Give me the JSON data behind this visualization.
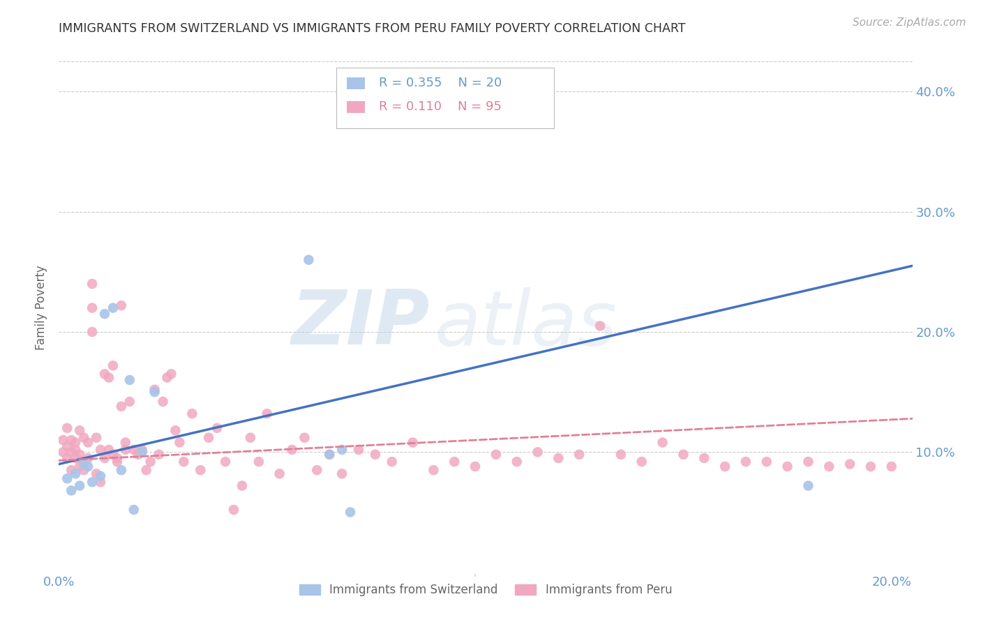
{
  "title": "IMMIGRANTS FROM SWITZERLAND VS IMMIGRANTS FROM PERU FAMILY POVERTY CORRELATION CHART",
  "source": "Source: ZipAtlas.com",
  "ylabel": "Family Poverty",
  "xlim": [
    0.0,
    0.205
  ],
  "ylim": [
    0.0,
    0.44
  ],
  "watermark_zip": "ZIP",
  "watermark_atlas": "atlas",
  "switzerland_color": "#a8c4e8",
  "peru_color": "#f0a8c0",
  "switzerland_line_color": "#4472c4",
  "peru_line_color": "#e08098",
  "legend_r_swiss": "R = 0.355",
  "legend_n_swiss": "N = 20",
  "legend_r_peru": "R = 0.110",
  "legend_n_peru": "N = 95",
  "legend_label_swiss": "Immigrants from Switzerland",
  "legend_label_peru": "Immigrants from Peru",
  "title_color": "#333333",
  "axis_color": "#6699cc",
  "grid_color": "#cccccc",
  "background_color": "#ffffff",
  "swiss_x": [
    0.002,
    0.003,
    0.004,
    0.005,
    0.006,
    0.007,
    0.008,
    0.01,
    0.011,
    0.013,
    0.015,
    0.017,
    0.018,
    0.02,
    0.023,
    0.06,
    0.065,
    0.068,
    0.07,
    0.18
  ],
  "swiss_y": [
    0.078,
    0.068,
    0.082,
    0.072,
    0.09,
    0.088,
    0.075,
    0.08,
    0.215,
    0.22,
    0.085,
    0.16,
    0.052,
    0.1,
    0.15,
    0.26,
    0.098,
    0.102,
    0.05,
    0.072
  ],
  "peru_x": [
    0.001,
    0.001,
    0.002,
    0.002,
    0.002,
    0.003,
    0.003,
    0.003,
    0.004,
    0.004,
    0.004,
    0.005,
    0.005,
    0.005,
    0.006,
    0.006,
    0.006,
    0.007,
    0.007,
    0.008,
    0.008,
    0.008,
    0.009,
    0.009,
    0.01,
    0.01,
    0.011,
    0.011,
    0.012,
    0.012,
    0.013,
    0.013,
    0.014,
    0.014,
    0.015,
    0.015,
    0.016,
    0.016,
    0.017,
    0.018,
    0.019,
    0.02,
    0.021,
    0.022,
    0.023,
    0.024,
    0.025,
    0.026,
    0.027,
    0.028,
    0.029,
    0.03,
    0.032,
    0.034,
    0.036,
    0.038,
    0.04,
    0.042,
    0.044,
    0.046,
    0.048,
    0.05,
    0.053,
    0.056,
    0.059,
    0.062,
    0.065,
    0.068,
    0.072,
    0.076,
    0.08,
    0.085,
    0.09,
    0.095,
    0.1,
    0.105,
    0.11,
    0.115,
    0.12,
    0.125,
    0.13,
    0.135,
    0.14,
    0.145,
    0.15,
    0.155,
    0.16,
    0.165,
    0.17,
    0.175,
    0.18,
    0.185,
    0.19,
    0.195,
    0.2
  ],
  "peru_y": [
    0.1,
    0.11,
    0.095,
    0.105,
    0.12,
    0.085,
    0.1,
    0.11,
    0.095,
    0.108,
    0.102,
    0.088,
    0.098,
    0.118,
    0.092,
    0.112,
    0.085,
    0.095,
    0.108,
    0.2,
    0.22,
    0.24,
    0.082,
    0.112,
    0.075,
    0.102,
    0.165,
    0.095,
    0.102,
    0.162,
    0.172,
    0.098,
    0.092,
    0.095,
    0.222,
    0.138,
    0.108,
    0.102,
    0.142,
    0.102,
    0.098,
    0.102,
    0.085,
    0.092,
    0.152,
    0.098,
    0.142,
    0.162,
    0.165,
    0.118,
    0.108,
    0.092,
    0.132,
    0.085,
    0.112,
    0.12,
    0.092,
    0.052,
    0.072,
    0.112,
    0.092,
    0.132,
    0.082,
    0.102,
    0.112,
    0.085,
    0.098,
    0.082,
    0.102,
    0.098,
    0.092,
    0.108,
    0.085,
    0.092,
    0.088,
    0.098,
    0.092,
    0.1,
    0.095,
    0.098,
    0.205,
    0.098,
    0.092,
    0.108,
    0.098,
    0.095,
    0.088,
    0.092,
    0.092,
    0.088,
    0.092,
    0.088,
    0.09,
    0.088,
    0.088
  ]
}
